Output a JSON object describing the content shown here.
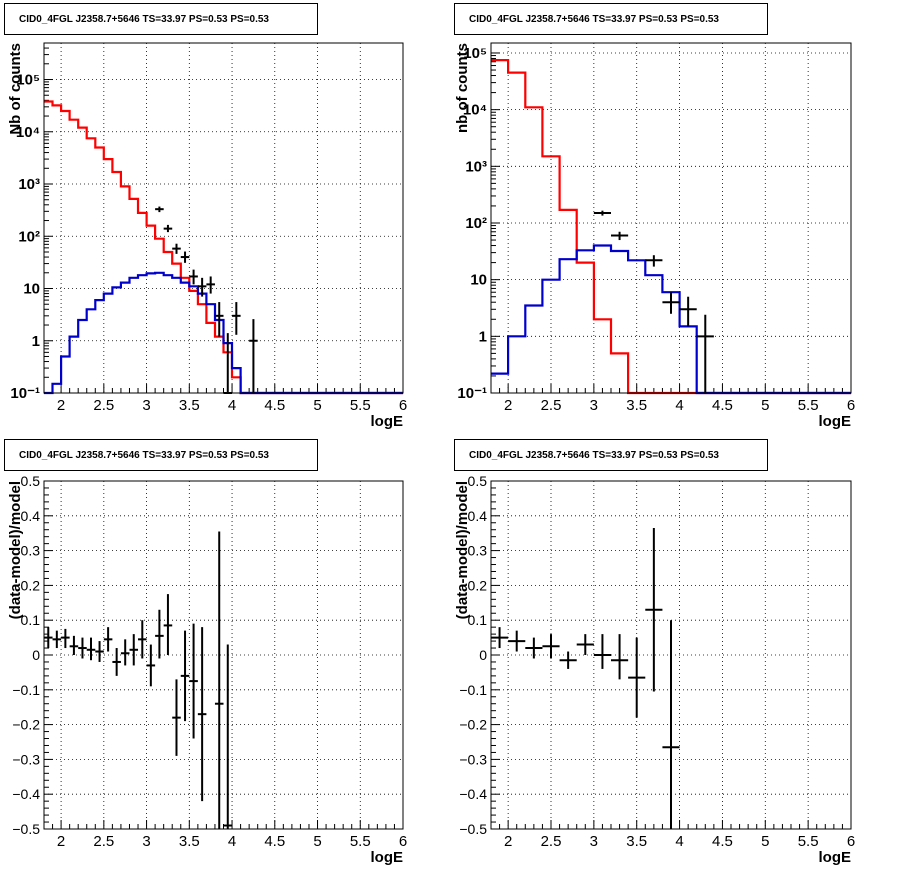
{
  "colors": {
    "data": "#000000",
    "total": "#ff0000",
    "component": "#0000cc",
    "grid": "#000000"
  },
  "chart_data": [
    {
      "type": "histogram",
      "title": "CID0_4FGL J2358.7+5646 TS=33.97 PS=0.53 PS=0.53",
      "xlabel": "logE",
      "ylabel": "Nb of counts",
      "yscale": "log",
      "xlim": [
        1.8,
        6.0
      ],
      "ylim": [
        0.1,
        500000
      ],
      "xticks": [
        2,
        2.5,
        3,
        3.5,
        4,
        4.5,
        5,
        5.5,
        6
      ],
      "xtick_labels": [
        "2",
        "2.5",
        "3",
        "3.5",
        "4",
        "4.5",
        "5",
        "5.5",
        "6"
      ],
      "yticks": [
        0.1,
        1,
        10,
        100,
        1000,
        10000,
        100000
      ],
      "ytick_labels": [
        "10⁻¹",
        "1",
        "10",
        "10²",
        "10³",
        "10⁴",
        "10⁵"
      ],
      "grid": true,
      "bin_edges": [
        1.8,
        1.9,
        2.0,
        2.1,
        2.2,
        2.3,
        2.4,
        2.5,
        2.6,
        2.7,
        2.8,
        2.9,
        3.0,
        3.1,
        3.2,
        3.3,
        3.4,
        3.5,
        3.6,
        3.7,
        3.8,
        3.9,
        4.0,
        4.1,
        4.2,
        4.3,
        4.4,
        4.5,
        4.6,
        4.7,
        4.8,
        4.9,
        5.0,
        5.1,
        5.2,
        5.3,
        5.4,
        5.5,
        5.6,
        5.7,
        5.8,
        5.9,
        6.0
      ],
      "series": [
        {
          "name": "total",
          "color": "total",
          "values": [
            38000,
            32000,
            25000,
            17000,
            12000,
            7500,
            5000,
            3000,
            1700,
            900,
            520,
            280,
            160,
            90,
            50,
            30,
            16,
            9,
            5,
            2.2,
            1.2,
            0.6,
            0.2,
            0.1,
            0.1,
            0.1,
            0.1,
            0.1,
            0.1,
            0.1,
            0.1,
            0.1,
            0.1,
            0.1,
            0.1,
            0.1,
            0.1,
            0.1,
            0.1,
            0.1,
            0.1,
            0.1
          ]
        },
        {
          "name": "component",
          "color": "component",
          "values": [
            0.1,
            0.15,
            0.5,
            1.2,
            2.5,
            4,
            6,
            8,
            10.5,
            13,
            16,
            18,
            19.5,
            20,
            18,
            16,
            13,
            11,
            8,
            5,
            2.5,
            0.9,
            0.3,
            0.1,
            0.1,
            0.1,
            0.1,
            0.1,
            0.1,
            0.1,
            0.1,
            0.1,
            0.1,
            0.1,
            0.1,
            0.1,
            0.1,
            0.1,
            0.1,
            0.1,
            0.1,
            0.1
          ]
        }
      ],
      "points": [
        {
          "x": 3.15,
          "y": 330,
          "xerr": 0.05,
          "ylo": 290,
          "yhi": 370
        },
        {
          "x": 3.25,
          "y": 140,
          "xerr": 0.05,
          "ylo": 120,
          "yhi": 165
        },
        {
          "x": 3.35,
          "y": 58,
          "xerr": 0.05,
          "ylo": 46,
          "yhi": 72
        },
        {
          "x": 3.45,
          "y": 40,
          "xerr": 0.05,
          "ylo": 31,
          "yhi": 51
        },
        {
          "x": 3.55,
          "y": 17,
          "xerr": 0.05,
          "ylo": 12,
          "yhi": 23
        },
        {
          "x": 3.65,
          "y": 11,
          "xerr": 0.05,
          "ylo": 7,
          "yhi": 16
        },
        {
          "x": 3.75,
          "y": 12,
          "xerr": 0.05,
          "ylo": 8,
          "yhi": 17
        },
        {
          "x": 3.85,
          "y": 3,
          "xerr": 0.05,
          "ylo": 1.2,
          "yhi": 5.5
        },
        {
          "x": 3.95,
          "y": 0.1,
          "xerr": 0.05,
          "ylo": 0.1,
          "yhi": 1.4
        },
        {
          "x": 4.05,
          "y": 3,
          "xerr": 0.05,
          "ylo": 1.3,
          "yhi": 5.5
        },
        {
          "x": 4.25,
          "y": 1,
          "xerr": 0.05,
          "ylo": 0.1,
          "yhi": 2.6
        }
      ]
    },
    {
      "type": "histogram",
      "title": "CID0_4FGL J2358.7+5646 TS=33.97 PS=0.53 PS=0.53",
      "xlabel": "logE",
      "ylabel": "nb of counts",
      "yscale": "log",
      "xlim": [
        1.8,
        6.0
      ],
      "ylim": [
        0.1,
        150000
      ],
      "xticks": [
        2,
        2.5,
        3,
        3.5,
        4,
        4.5,
        5,
        5.5,
        6
      ],
      "xtick_labels": [
        "2",
        "2.5",
        "3",
        "3.5",
        "4",
        "4.5",
        "5",
        "5.5",
        "6"
      ],
      "yticks": [
        0.1,
        1,
        10,
        100,
        1000,
        10000,
        100000
      ],
      "ytick_labels": [
        "10⁻¹",
        "1",
        "10",
        "10²",
        "10³",
        "10⁴",
        "10⁵"
      ],
      "grid": true,
      "bin_edges": [
        1.8,
        2.0,
        2.2,
        2.4,
        2.6,
        2.8,
        3.0,
        3.2,
        3.4,
        3.6,
        3.8,
        4.0,
        4.2,
        4.4,
        4.6,
        4.8,
        5.0,
        5.2,
        5.4,
        5.6,
        5.8,
        6.0
      ],
      "series": [
        {
          "name": "total",
          "color": "total",
          "values": [
            75000,
            45000,
            11000,
            1500,
            170,
            20,
            2,
            0.5,
            0.1,
            0.1,
            0.1,
            0.1,
            0.1,
            0.1,
            0.1,
            0.1,
            0.1,
            0.1,
            0.1,
            0.1,
            0.1
          ]
        },
        {
          "name": "component",
          "color": "component",
          "values": [
            0.22,
            1,
            3.5,
            10,
            23,
            33,
            40,
            32,
            22,
            12,
            6,
            1.5,
            0.1,
            0.1,
            0.1,
            0.1,
            0.1,
            0.1,
            0.1,
            0.1,
            0.1
          ]
        }
      ],
      "points": [
        {
          "x": 3.1,
          "y": 150,
          "xerr": 0.1,
          "ylo": 135,
          "yhi": 165
        },
        {
          "x": 3.3,
          "y": 60,
          "xerr": 0.1,
          "ylo": 50,
          "yhi": 70
        },
        {
          "x": 3.7,
          "y": 22,
          "xerr": 0.1,
          "ylo": 17,
          "yhi": 27
        },
        {
          "x": 3.9,
          "y": 4,
          "xerr": 0.1,
          "ylo": 2.5,
          "yhi": 6
        },
        {
          "x": 4.1,
          "y": 3,
          "xerr": 0.1,
          "ylo": 1.5,
          "yhi": 5
        },
        {
          "x": 4.3,
          "y": 1,
          "xerr": 0.1,
          "ylo": 0.1,
          "yhi": 2.4
        }
      ]
    },
    {
      "type": "scatter",
      "title": "CID0_4FGL J2358.7+5646 TS=33.97 PS=0.53 PS=0.53",
      "xlabel": "logE",
      "ylabel": "(data-model)/model",
      "yscale": "linear",
      "xlim": [
        1.8,
        6.0
      ],
      "ylim": [
        -0.5,
        0.5
      ],
      "xticks": [
        2,
        2.5,
        3,
        3.5,
        4,
        4.5,
        5,
        5.5,
        6
      ],
      "xtick_labels": [
        "2",
        "2.5",
        "3",
        "3.5",
        "4",
        "4.5",
        "5",
        "5.5",
        "6"
      ],
      "yticks": [
        -0.5,
        -0.4,
        -0.3,
        -0.2,
        -0.1,
        0,
        0.1,
        0.2,
        0.3,
        0.4,
        0.5
      ],
      "ytick_labels": [
        "−0.5",
        "−0.4",
        "−0.3",
        "−0.2",
        "−0.1",
        "0",
        "0.1",
        "0.2",
        "0.3",
        "0.4",
        "0.5"
      ],
      "grid": true,
      "points": [
        {
          "x": 1.85,
          "y": 0.05,
          "xerr": 0.05,
          "ylo": 0.02,
          "yhi": 0.08
        },
        {
          "x": 1.95,
          "y": 0.045,
          "xerr": 0.05,
          "ylo": 0.02,
          "yhi": 0.07
        },
        {
          "x": 2.05,
          "y": 0.05,
          "xerr": 0.05,
          "ylo": 0.02,
          "yhi": 0.075
        },
        {
          "x": 2.15,
          "y": 0.025,
          "xerr": 0.05,
          "ylo": 0.0,
          "yhi": 0.055
        },
        {
          "x": 2.25,
          "y": 0.02,
          "xerr": 0.05,
          "ylo": -0.01,
          "yhi": 0.05
        },
        {
          "x": 2.35,
          "y": 0.015,
          "xerr": 0.05,
          "ylo": -0.015,
          "yhi": 0.05
        },
        {
          "x": 2.45,
          "y": 0.01,
          "xerr": 0.05,
          "ylo": -0.02,
          "yhi": 0.04
        },
        {
          "x": 2.55,
          "y": 0.045,
          "xerr": 0.05,
          "ylo": 0.01,
          "yhi": 0.08
        },
        {
          "x": 2.65,
          "y": -0.02,
          "xerr": 0.05,
          "ylo": -0.06,
          "yhi": 0.02
        },
        {
          "x": 2.75,
          "y": 0.005,
          "xerr": 0.05,
          "ylo": -0.03,
          "yhi": 0.045
        },
        {
          "x": 2.85,
          "y": 0.015,
          "xerr": 0.05,
          "ylo": -0.03,
          "yhi": 0.06
        },
        {
          "x": 2.95,
          "y": 0.045,
          "xerr": 0.05,
          "ylo": -0.01,
          "yhi": 0.1
        },
        {
          "x": 3.05,
          "y": -0.03,
          "xerr": 0.05,
          "ylo": -0.09,
          "yhi": 0.03
        },
        {
          "x": 3.15,
          "y": 0.055,
          "xerr": 0.05,
          "ylo": -0.01,
          "yhi": 0.13
        },
        {
          "x": 3.25,
          "y": 0.085,
          "xerr": 0.05,
          "ylo": 0.0,
          "yhi": 0.175
        },
        {
          "x": 3.35,
          "y": -0.18,
          "xerr": 0.05,
          "ylo": -0.29,
          "yhi": -0.07
        },
        {
          "x": 3.45,
          "y": -0.06,
          "xerr": 0.05,
          "ylo": -0.19,
          "yhi": 0.07
        },
        {
          "x": 3.55,
          "y": -0.075,
          "xerr": 0.05,
          "ylo": -0.24,
          "yhi": 0.09
        },
        {
          "x": 3.65,
          "y": -0.17,
          "xerr": 0.05,
          "ylo": -0.42,
          "yhi": 0.08
        },
        {
          "x": 3.85,
          "y": -0.14,
          "xerr": 0.05,
          "ylo": -0.5,
          "yhi": 0.355
        },
        {
          "x": 3.95,
          "y": -0.49,
          "xerr": 0.05,
          "ylo": -0.5,
          "yhi": 0.03
        }
      ]
    },
    {
      "type": "scatter",
      "title": "CID0_4FGL J2358.7+5646 TS=33.97 PS=0.53 PS=0.53",
      "xlabel": "logE",
      "ylabel": "(data-model)/model",
      "yscale": "linear",
      "xlim": [
        1.8,
        6.0
      ],
      "ylim": [
        -0.5,
        0.5
      ],
      "xticks": [
        2,
        2.5,
        3,
        3.5,
        4,
        4.5,
        5,
        5.5,
        6
      ],
      "xtick_labels": [
        "2",
        "2.5",
        "3",
        "3.5",
        "4",
        "4.5",
        "5",
        "5.5",
        "6"
      ],
      "yticks": [
        -0.5,
        -0.4,
        -0.3,
        -0.2,
        -0.1,
        0,
        0.1,
        0.2,
        0.3,
        0.4,
        0.5
      ],
      "ytick_labels": [
        "−0.5",
        "−0.4",
        "−0.3",
        "−0.2",
        "−0.1",
        "0",
        "0.1",
        "0.2",
        "0.3",
        "0.4",
        "0.5"
      ],
      "grid": true,
      "points": [
        {
          "x": 1.9,
          "y": 0.05,
          "xerr": 0.1,
          "ylo": 0.02,
          "yhi": 0.08
        },
        {
          "x": 2.1,
          "y": 0.04,
          "xerr": 0.1,
          "ylo": 0.01,
          "yhi": 0.07
        },
        {
          "x": 2.3,
          "y": 0.02,
          "xerr": 0.1,
          "ylo": -0.01,
          "yhi": 0.05
        },
        {
          "x": 2.5,
          "y": 0.025,
          "xerr": 0.1,
          "ylo": -0.01,
          "yhi": 0.06
        },
        {
          "x": 2.7,
          "y": -0.015,
          "xerr": 0.1,
          "ylo": -0.04,
          "yhi": 0.01
        },
        {
          "x": 2.9,
          "y": 0.03,
          "xerr": 0.1,
          "ylo": 0.0,
          "yhi": 0.06
        },
        {
          "x": 3.1,
          "y": 0.0,
          "xerr": 0.1,
          "ylo": -0.04,
          "yhi": 0.06
        },
        {
          "x": 3.3,
          "y": -0.015,
          "xerr": 0.1,
          "ylo": -0.07,
          "yhi": 0.06
        },
        {
          "x": 3.5,
          "y": -0.065,
          "xerr": 0.1,
          "ylo": -0.18,
          "yhi": 0.05
        },
        {
          "x": 3.7,
          "y": 0.13,
          "xerr": 0.1,
          "ylo": -0.105,
          "yhi": 0.365
        },
        {
          "x": 3.9,
          "y": -0.265,
          "xerr": 0.1,
          "ylo": -0.5,
          "yhi": 0.1
        }
      ]
    }
  ]
}
